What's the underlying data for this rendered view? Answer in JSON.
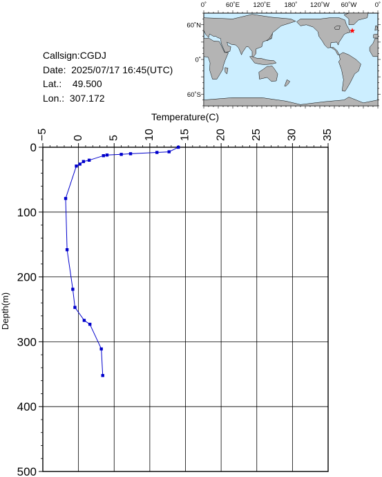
{
  "station": {
    "callsign_label": "Callsign:",
    "callsign": "CGDJ",
    "date_label": "Date:",
    "date": "2025/07/17 16:45(UTC)",
    "lat_label": "Lat.:",
    "lat": "49.500",
    "lon_label": "Lon.:",
    "lon": "307.172"
  },
  "map": {
    "top_lon_labels": [
      "0˚",
      "60˚E",
      "120˚E",
      "180˚",
      "120˚W",
      "60˚W",
      "0˚"
    ],
    "lat_labels": [
      "60˚N",
      "0˚",
      "60˚S"
    ],
    "ocean_color": "#cceeff",
    "land_color": "#b4b4b4",
    "marker_color": "#ff0000",
    "marker_lon": 307.172,
    "marker_lat": 49.5
  },
  "chart_data": {
    "type": "line",
    "xlabel": "Temperature(C)",
    "ylabel": "Depth(m)",
    "xlim": [
      -5,
      35
    ],
    "ylim": [
      0,
      500
    ],
    "x_ticks": [
      "−5",
      "0",
      "5",
      "10",
      "15",
      "20",
      "25",
      "30",
      "35"
    ],
    "y_ticks": [
      "0",
      "100",
      "200",
      "300",
      "400",
      "500"
    ],
    "grid": true,
    "line_color": "#0000cc",
    "series": [
      {
        "points": [
          {
            "temp": 14.0,
            "depth": 0
          },
          {
            "temp": 12.7,
            "depth": 7
          },
          {
            "temp": 11.0,
            "depth": 8
          },
          {
            "temp": 7.3,
            "depth": 10
          },
          {
            "temp": 6.0,
            "depth": 11
          },
          {
            "temp": 4.0,
            "depth": 12
          },
          {
            "temp": 3.5,
            "depth": 13
          },
          {
            "temp": 1.5,
            "depth": 20
          },
          {
            "temp": 0.7,
            "depth": 22
          },
          {
            "temp": 0.2,
            "depth": 26
          },
          {
            "temp": -0.3,
            "depth": 29
          },
          {
            "temp": -1.8,
            "depth": 79
          },
          {
            "temp": -1.6,
            "depth": 158
          },
          {
            "temp": -0.8,
            "depth": 219
          },
          {
            "temp": -0.5,
            "depth": 247
          },
          {
            "temp": 0.8,
            "depth": 267
          },
          {
            "temp": 1.6,
            "depth": 273
          },
          {
            "temp": 3.2,
            "depth": 311
          },
          {
            "temp": 3.4,
            "depth": 352
          }
        ]
      }
    ]
  }
}
